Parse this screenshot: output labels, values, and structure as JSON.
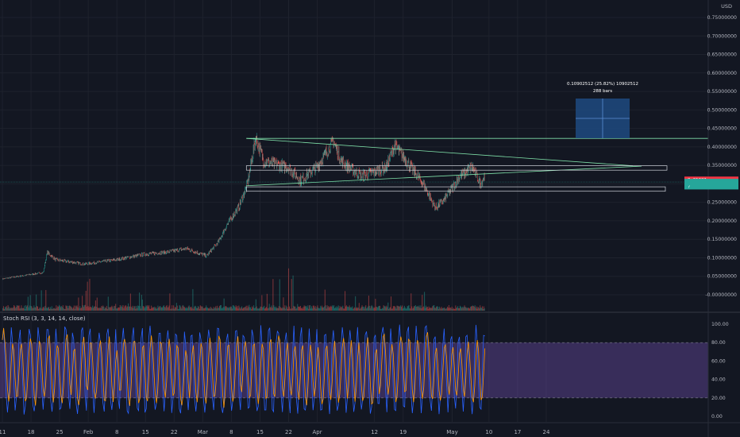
{
  "currency": "USD",
  "price_axis": {
    "labels": [
      "0.75000000",
      "0.70000000",
      "0.65000000",
      "0.60000000",
      "0.55000000",
      "0.50000000",
      "0.45000000",
      "0.40000000",
      "0.35000000",
      "0.30000000",
      "0.25000000",
      "0.20000000",
      "0.15000000",
      "0.10000000",
      "0.05000000",
      "-0.00000000"
    ],
    "values": [
      0.75,
      0.7,
      0.65,
      0.6,
      0.55,
      0.5,
      0.45,
      0.4,
      0.35,
      0.3,
      0.25,
      0.2,
      0.15,
      0.1,
      0.05,
      0.0
    ]
  },
  "price_tags": [
    {
      "label": "0.31???",
      "price": 0.3111,
      "color": "#f23645"
    },
    {
      "label": "0.30??",
      "price": 0.305,
      "color": "#26a69a"
    },
    {
      "label": "?",
      "price": 0.2935,
      "color": "#26a69a"
    }
  ],
  "price_tag_left": {
    "label": "?",
    "price": 0.304,
    "color": "#26a69a"
  },
  "rsi_axis": {
    "labels": [
      "100.00",
      "80.00",
      "60.00",
      "40.00",
      "20.00",
      "0.00"
    ],
    "values": [
      100,
      80,
      60,
      40,
      20,
      0
    ]
  },
  "indicator_label": "Stoch RSI (3, 3, 14, 14, close)",
  "time_axis": {
    "labels": [
      "11",
      "18",
      "25",
      "Feb",
      "8",
      "15",
      "22",
      "Mar",
      "8",
      "15",
      "22",
      "Apr",
      "12",
      "19",
      "May",
      "10",
      "17",
      "24"
    ],
    "index": [
      0,
      7,
      14,
      21,
      28,
      35,
      42,
      49,
      56,
      63,
      70,
      77,
      91,
      98,
      110,
      119,
      126,
      133
    ]
  },
  "measure": {
    "line1": "0.10902512 (25.82%) 10902512",
    "line2": "288 bars"
  },
  "colors": {
    "background": "#131722",
    "up": "#26a69a",
    "down": "#ef5350",
    "trendline": "#7fe0a8",
    "rsi_k": "#2962ff",
    "rsi_d": "#ff9800",
    "rsi_band": "#7e57c2",
    "measure_box": "#1e4a80"
  },
  "chart_data": {
    "type": "candlestick",
    "x_start_label": "11",
    "y_range": [
      -0.03,
      0.78
    ],
    "series_shape": [
      [
        0,
        0.043
      ],
      [
        7,
        0.055
      ],
      [
        10,
        0.06
      ],
      [
        11,
        0.115
      ],
      [
        13,
        0.095
      ],
      [
        20,
        0.083
      ],
      [
        28,
        0.095
      ],
      [
        35,
        0.11
      ],
      [
        40,
        0.115
      ],
      [
        45,
        0.125
      ],
      [
        50,
        0.105
      ],
      [
        53,
        0.145
      ],
      [
        55,
        0.19
      ],
      [
        58,
        0.24
      ],
      [
        60,
        0.3
      ],
      [
        62,
        0.425
      ],
      [
        64,
        0.36
      ],
      [
        70,
        0.345
      ],
      [
        73,
        0.31
      ],
      [
        77,
        0.345
      ],
      [
        81,
        0.415
      ],
      [
        83,
        0.36
      ],
      [
        88,
        0.32
      ],
      [
        94,
        0.345
      ],
      [
        96,
        0.405
      ],
      [
        100,
        0.345
      ],
      [
        103,
        0.3
      ],
      [
        106,
        0.235
      ],
      [
        108,
        0.255
      ],
      [
        112,
        0.32
      ],
      [
        115,
        0.345
      ],
      [
        117,
        0.3
      ],
      [
        118,
        0.32
      ]
    ],
    "horizontal_line_price": 0.423,
    "zones": [
      {
        "top": 0.349,
        "bottom": 0.337
      },
      {
        "top": 0.292,
        "bottom": 0.28
      }
    ]
  }
}
